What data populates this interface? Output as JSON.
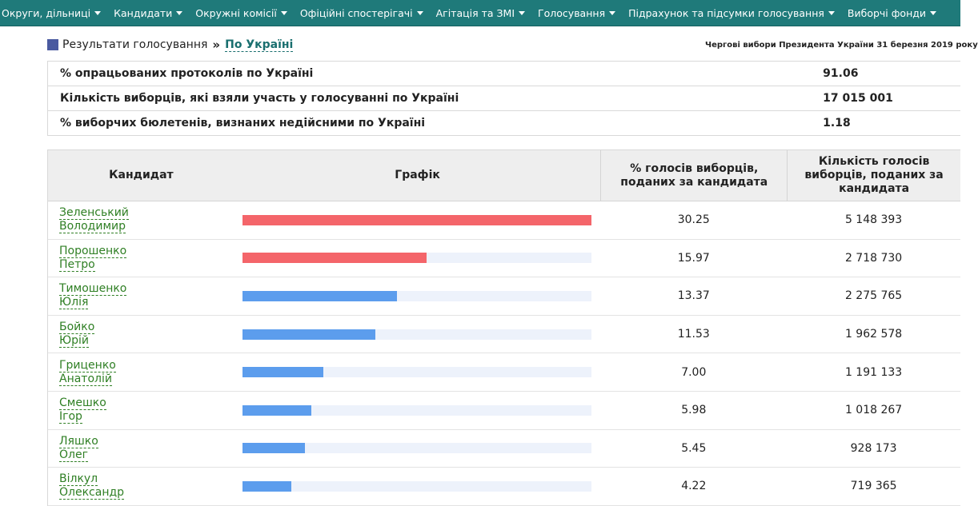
{
  "nav": {
    "items": [
      {
        "label": "Округи, дільниці"
      },
      {
        "label": "Кандидати"
      },
      {
        "label": "Окружні комісії"
      },
      {
        "label": "Офіційні спостерігачі"
      },
      {
        "label": "Агітація та ЗМІ"
      },
      {
        "label": "Голосування"
      },
      {
        "label": "Підрахунок та підсумки голосування"
      },
      {
        "label": "Виборчі фонди"
      }
    ]
  },
  "breadcrumb": {
    "home": "Результати голосування",
    "separator": "»",
    "current": "По Україні"
  },
  "election_title": "Черговi вибори Президента України 31 березня 2019 року",
  "summary": [
    {
      "label": "% опрацьованих протоколів по Україні",
      "value": "91.06"
    },
    {
      "label": "Кількість виборців, які взяли участь у голосуванні по Україні",
      "value": "17 015 001"
    },
    {
      "label": "% виборчих бюлетенів, визнаних недійсними по Україні",
      "value": "1.18"
    }
  ],
  "results": {
    "headers": {
      "candidate": "Кандидат",
      "graph": "Графік",
      "percent": "% голосів виборців, поданих за кандидата",
      "votes": "Кількість голосів виборців, поданих за кандидата"
    },
    "colors": {
      "leader": "#f4656a",
      "other": "#5c9ded",
      "track": "#edf2fb"
    },
    "rows": [
      {
        "surname": "Зеленський",
        "name": "Володимир",
        "percent": "30.25",
        "votes": "5 148 393",
        "bar_fraction": 1.0,
        "bar_color": "leader"
      },
      {
        "surname": "Порошенко",
        "name": "Петро",
        "percent": "15.97",
        "votes": "2 718 730",
        "bar_fraction": 0.528,
        "bar_color": "leader"
      },
      {
        "surname": "Тимошенко",
        "name": "Юлія",
        "percent": "13.37",
        "votes": "2 275 765",
        "bar_fraction": 0.442,
        "bar_color": "other"
      },
      {
        "surname": "Бойко",
        "name": "Юрій",
        "percent": "11.53",
        "votes": "1 962 578",
        "bar_fraction": 0.381,
        "bar_color": "other"
      },
      {
        "surname": "Гриценко",
        "name": "Анатолій",
        "percent": "7.00",
        "votes": "1 191 133",
        "bar_fraction": 0.231,
        "bar_color": "other"
      },
      {
        "surname": "Смешко",
        "name": "Ігор",
        "percent": "5.98",
        "votes": "1 018 267",
        "bar_fraction": 0.198,
        "bar_color": "other"
      },
      {
        "surname": "Ляшко",
        "name": "Олег",
        "percent": "5.45",
        "votes": "928 173",
        "bar_fraction": 0.18,
        "bar_color": "other"
      },
      {
        "surname": "Вілкул",
        "name": "Олександр",
        "percent": "4.22",
        "votes": "719 365",
        "bar_fraction": 0.14,
        "bar_color": "other"
      }
    ]
  }
}
